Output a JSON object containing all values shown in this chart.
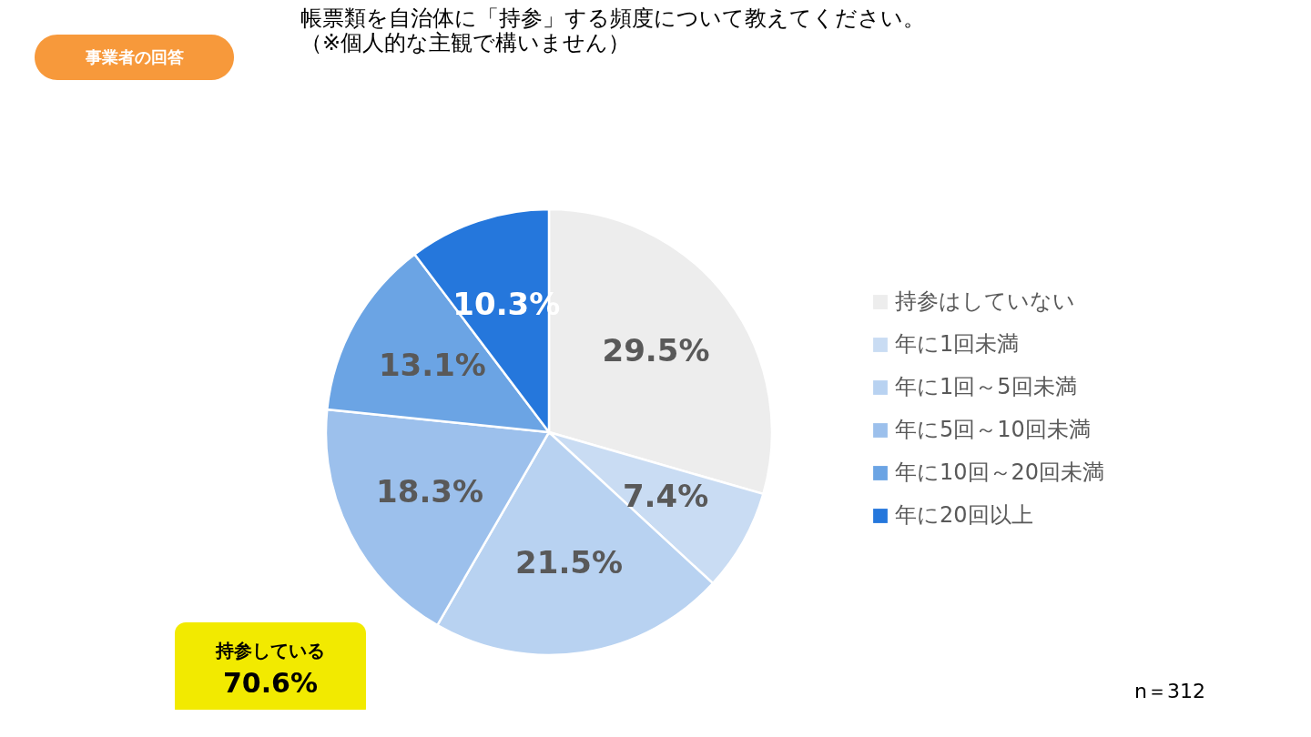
{
  "chart_data": {
    "type": "pie",
    "title": "帳票類を自治体に「持参」する頻度について教えてください。",
    "subtitle": "（※個人的な主観で構いません）",
    "categories": [
      "持参はしていない",
      "年に1回未満",
      "年に1回～5回未満",
      "年に5回～10回未満",
      "年に10回～20回未満",
      "年に20回以上"
    ],
    "values": [
      29.5,
      7.4,
      21.5,
      18.3,
      13.1,
      10.3
    ],
    "colors": [
      "#ededed",
      "#c9dcf3",
      "#b8d2f1",
      "#9cc0ec",
      "#6ba4e4",
      "#2577dc"
    ],
    "value_labels": [
      "29.5%",
      "7.4%",
      "21.5%",
      "18.3%",
      "13.1%",
      "10.3%"
    ],
    "legend": "right",
    "annotations": [
      "事業者の回答",
      "持参している",
      "70.6%",
      "n＝312"
    ]
  }
}
